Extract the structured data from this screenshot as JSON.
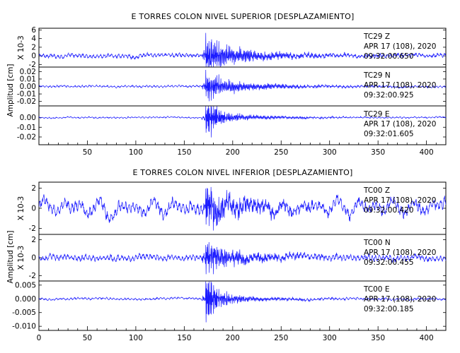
{
  "trace_color": "#1a1aff",
  "chart_data": [
    {
      "type": "line",
      "title": "E TORRES COLON NIVEL SUPERIOR [DESPLAZAMIENTO]",
      "ylabel_main": "Amplitud [cm]",
      "x_range": [
        0,
        420
      ],
      "x_ticks": [
        "50",
        "100",
        "150",
        "200",
        "250",
        "300",
        "350",
        "400"
      ],
      "traces": [
        {
          "name": "TC29 Z",
          "channel": "TC29    Z",
          "date": "APR 17 (108), 2020",
          "time": "09:32:00.650",
          "scale_label": "X 10-3",
          "y_ticks": [
            "6",
            "4",
            "2",
            "0",
            "-2"
          ],
          "ylim": [
            -2.6,
            6.4
          ],
          "noise": 0.5,
          "peak": 5.6,
          "coda": 3.0,
          "event_time": 172
        },
        {
          "name": "TC29 N",
          "channel": "TC29    N",
          "date": "APR 17 (108), 2020",
          "time": "09:32:00.925",
          "scale_label": "",
          "y_ticks": [
            "0.02",
            "0.01",
            "0.00",
            "-0.01",
            "-0.02"
          ],
          "ylim": [
            -0.026,
            0.026
          ],
          "noise": 0.0015,
          "peak": 0.024,
          "coda": 0.012,
          "event_time": 172
        },
        {
          "name": "TC29 E",
          "channel": "TC29    E",
          "date": "APR 17 (108), 2020",
          "time": "09:32:01.605",
          "scale_label": "",
          "y_ticks": [
            "0.00",
            "-0.01",
            "-0.02"
          ],
          "ylim": [
            -0.028,
            0.012
          ],
          "noise": 0.0008,
          "peak": 0.026,
          "coda": 0.006,
          "event_time": 172
        }
      ]
    },
    {
      "type": "line",
      "title": "E TORRES COLON NIVEL INFERIOR [DESPLAZAMIENTO]",
      "ylabel_main": "Amplitud [cm]",
      "x_range": [
        0,
        420
      ],
      "x_ticks": [
        "0",
        "50",
        "100",
        "150",
        "200",
        "250",
        "300",
        "350",
        "400"
      ],
      "traces": [
        {
          "name": "TC00 Z",
          "channel": "TC00    Z",
          "date": "APR 17 (108), 2020",
          "time": "09:32:00.420",
          "scale_label": "X 10-3",
          "y_ticks": [
            "2",
            "0",
            "-2"
          ],
          "ylim": [
            -2.6,
            2.6
          ],
          "noise": 0.6,
          "peak": 2.5,
          "coda": 1.3,
          "event_time": 172
        },
        {
          "name": "TC00 N",
          "channel": "TC00    N",
          "date": "APR 17 (108), 2020",
          "time": "09:32:00.455",
          "scale_label": "X 10-3",
          "y_ticks": [
            "2",
            "0",
            "-2"
          ],
          "ylim": [
            -2.6,
            2.6
          ],
          "noise": 0.35,
          "peak": 2.4,
          "coda": 1.2,
          "event_time": 172
        },
        {
          "name": "TC00 E",
          "channel": "TC00    E",
          "date": "APR 17 (108), 2020",
          "time": "09:32:00.185",
          "scale_label": "",
          "y_ticks": [
            "0.005",
            "0.000",
            "-0.005",
            "-0.010"
          ],
          "ylim": [
            -0.0115,
            0.0065
          ],
          "noise": 0.0004,
          "peak": 0.011,
          "coda": 0.002,
          "event_time": 172
        }
      ]
    }
  ]
}
